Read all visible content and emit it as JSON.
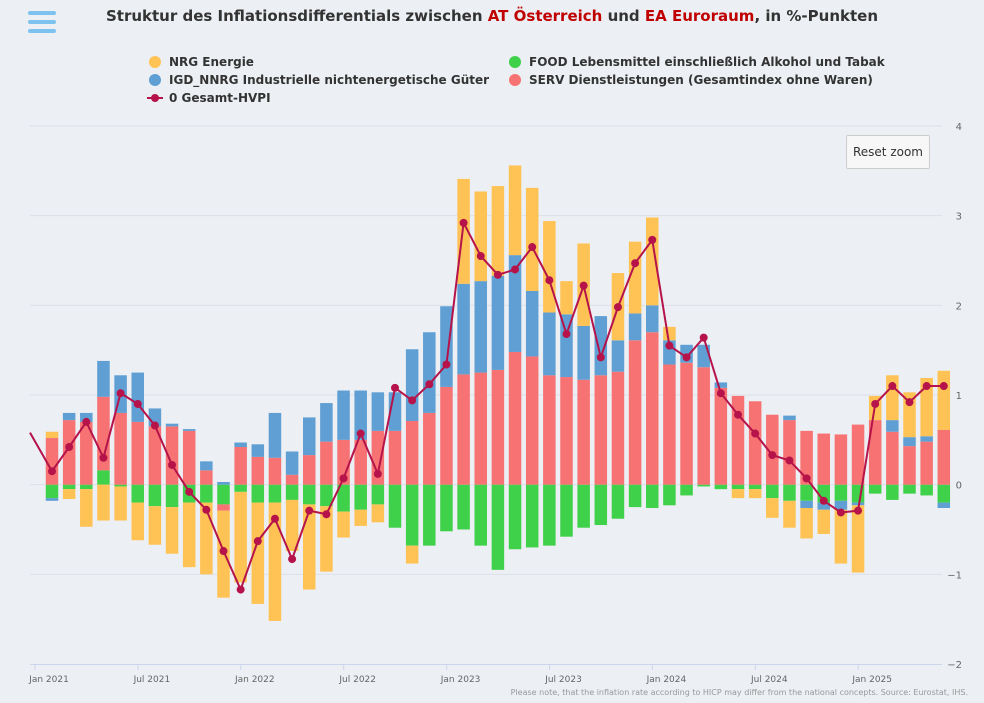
{
  "title": {
    "part1": "Struktur des Inflationsdifferentials zwischen ",
    "at": "AT Österreich",
    "part2": " und ",
    "ea": "EA Euroraum",
    "part3": ", in %-Punkten"
  },
  "reset_zoom_label": "Reset zoom",
  "footnote": "Please note, that the inflation rate according to HICP may differ from the national concepts. Source: Eurostat, IHS.",
  "colors": {
    "nrg": "#ffc355",
    "food": "#3fd14a",
    "igd": "#5f9fd3",
    "serv": "#f77272",
    "total": "#b5134a",
    "highlight": "#c00000"
  },
  "chart_data": {
    "type": "bar",
    "stacked": true,
    "title": "Struktur des Inflationsdifferentials zwischen AT Österreich und EA Euroraum, in %-Punkten",
    "ylim": [
      -2,
      4
    ],
    "yticks": [
      -2,
      -1,
      0,
      1,
      2,
      3,
      4
    ],
    "grid": true,
    "legend_position": "top",
    "x_tick_labels": [
      {
        "index": 0,
        "label": "Jan 2021"
      },
      {
        "index": 6,
        "label": "Jul 2021"
      },
      {
        "index": 12,
        "label": "Jan 2022"
      },
      {
        "index": 18,
        "label": "Jul 2022"
      },
      {
        "index": 24,
        "label": "Jan 2023"
      },
      {
        "index": 30,
        "label": "Jul 2023"
      },
      {
        "index": 36,
        "label": "Jan 2024"
      },
      {
        "index": 42,
        "label": "Jul 2024"
      },
      {
        "index": 48,
        "label": "Jan 2025"
      }
    ],
    "categories": [
      "Jan 2021",
      "Feb 2021",
      "Mar 2021",
      "Apr 2021",
      "May 2021",
      "Jun 2021",
      "Jul 2021",
      "Aug 2021",
      "Sep 2021",
      "Oct 2021",
      "Nov 2021",
      "Dec 2021",
      "Jan 2022",
      "Feb 2022",
      "Mar 2022",
      "Apr 2022",
      "May 2022",
      "Jun 2022",
      "Jul 2022",
      "Aug 2022",
      "Sep 2022",
      "Oct 2022",
      "Nov 2022",
      "Dec 2022",
      "Jan 2023",
      "Feb 2023",
      "Mar 2023",
      "Apr 2023",
      "May 2023",
      "Jun 2023",
      "Jul 2023",
      "Aug 2023",
      "Sep 2023",
      "Oct 2023",
      "Nov 2023",
      "Dec 2023",
      "Jan 2024",
      "Feb 2024",
      "Mar 2024",
      "Apr 2024",
      "May 2024",
      "Jun 2024",
      "Jul 2024",
      "Aug 2024",
      "Sep 2024",
      "Oct 2024",
      "Nov 2024",
      "Dec 2024",
      "Jan 2025",
      "Feb 2025",
      "Mar 2025",
      "Apr 2025",
      "May 2025"
    ],
    "series": [
      {
        "key": "nrg",
        "name": "NRG Energie",
        "values": [
          0.07,
          -0.11,
          -0.42,
          -0.4,
          -0.38,
          -0.62,
          -0.67,
          -0.77,
          -0.92,
          -1.03,
          -1.23,
          -1.22,
          -1.36,
          -1.52,
          -0.88,
          -1.25,
          -0.98,
          -0.32,
          -0.18,
          -0.2,
          -0.3,
          -0.4,
          0.0,
          -0.2,
          1.17,
          1.0,
          1.0,
          1.0,
          1.15,
          1.02,
          0.37,
          0.92,
          0.0,
          0.75,
          0.8,
          0.98,
          0.15,
          0.0,
          0.0,
          0.0,
          0.0,
          0.0,
          -0.22,
          -0.3,
          -0.34,
          -0.27,
          -0.6,
          -0.75,
          0.27,
          0.5,
          0.5,
          0.65,
          0.66
        ],
        "neg_values": [
          -0.15,
          -0.11,
          -0.42,
          -0.4,
          -0.38,
          -0.42,
          -0.43,
          -0.52,
          -0.72,
          -0.8,
          -0.97,
          -1.01,
          -1.13,
          -1.32,
          -0.57,
          -0.95,
          -0.73,
          -0.29,
          -0.18,
          -0.2,
          0.0,
          -0.2,
          0.0,
          0.0,
          0.0,
          0.0,
          0.0,
          0.0,
          0.0,
          0.0,
          0.0,
          0.0,
          0.0,
          0.0,
          0.0,
          0.0,
          -0.02,
          0.0,
          0.0,
          0.0,
          -0.1,
          -0.1,
          -0.22,
          -0.3,
          -0.34,
          -0.27,
          -0.6,
          -0.75,
          0.0,
          0.0,
          0.0,
          0.0,
          0.0
        ]
      },
      {
        "key": "food",
        "name": "FOOD Lebensmittel einschließlich Alkohol und Tabak",
        "values": [
          -0.15,
          -0.05,
          -0.05,
          0.16,
          -0.02,
          -0.2,
          -0.24,
          -0.25,
          -0.2,
          -0.2,
          -0.22,
          -0.08,
          -0.2,
          -0.2,
          -0.17,
          -0.22,
          -0.24,
          -0.3,
          -0.28,
          -0.22,
          -0.48,
          -0.68,
          -0.68,
          -0.52,
          -0.5,
          -0.68,
          -0.95,
          -0.72,
          -0.7,
          -0.68,
          -0.58,
          -0.48,
          -0.45,
          -0.38,
          -0.25,
          -0.26,
          -0.23,
          -0.12,
          -0.02,
          -0.05,
          -0.05,
          -0.05,
          -0.15,
          -0.18,
          -0.18,
          -0.2,
          -0.18,
          -0.2,
          -0.1,
          -0.17,
          -0.1,
          -0.12,
          -0.2
        ]
      },
      {
        "key": "igd",
        "name": "IGD_NNRG Industrielle nichtenergetische Güter",
        "values": [
          -0.03,
          0.08,
          0.1,
          0.4,
          0.42,
          0.55,
          0.2,
          0.03,
          0.02,
          0.1,
          0.03,
          0.05,
          0.14,
          0.5,
          0.26,
          0.42,
          0.43,
          0.55,
          0.55,
          0.43,
          0.43,
          0.8,
          0.9,
          0.9,
          1.01,
          1.02,
          1.05,
          1.08,
          0.73,
          0.7,
          0.7,
          0.6,
          0.66,
          0.35,
          0.3,
          0.3,
          0.27,
          0.2,
          0.25,
          0.06,
          0.0,
          0.0,
          0.0,
          0.05,
          -0.08,
          -0.08,
          -0.1,
          -0.03,
          0.0,
          0.13,
          0.1,
          0.06,
          -0.06
        ]
      },
      {
        "key": "serv",
        "name": "SERV Dienstleistungen (Gesamtindex ohne Waren)",
        "values": [
          0.52,
          0.72,
          0.7,
          0.82,
          0.8,
          0.7,
          0.65,
          0.65,
          0.6,
          0.16,
          -0.07,
          0.42,
          0.31,
          0.3,
          0.11,
          0.33,
          0.48,
          0.5,
          0.5,
          0.6,
          0.6,
          0.71,
          0.8,
          1.09,
          1.23,
          1.25,
          1.28,
          1.48,
          1.43,
          1.22,
          1.2,
          1.17,
          1.22,
          1.26,
          1.61,
          1.7,
          1.34,
          1.36,
          1.31,
          1.08,
          0.99,
          0.93,
          0.78,
          0.72,
          0.6,
          0.57,
          0.56,
          0.67,
          0.72,
          0.59,
          0.43,
          0.48,
          0.61
        ]
      },
      {
        "key": "total",
        "name": "0 Gesamt-HVPI",
        "type": "line",
        "values": [
          0.15,
          0.42,
          0.7,
          0.3,
          1.02,
          0.9,
          0.66,
          0.22,
          -0.08,
          -0.28,
          -0.74,
          -1.17,
          -0.63,
          -0.38,
          -0.83,
          -0.29,
          -0.33,
          0.07,
          0.57,
          0.12,
          1.08,
          0.94,
          1.12,
          1.34,
          2.92,
          2.55,
          2.34,
          2.4,
          2.65,
          2.28,
          1.68,
          2.22,
          1.42,
          1.98,
          2.47,
          2.73,
          1.55,
          1.42,
          1.64,
          1.02,
          0.78,
          0.57,
          0.33,
          0.27,
          0.07,
          -0.18,
          -0.31,
          -0.29,
          0.9,
          1.1,
          0.92,
          1.1,
          1.1
        ]
      }
    ],
    "total_start_value": 0.58
  }
}
